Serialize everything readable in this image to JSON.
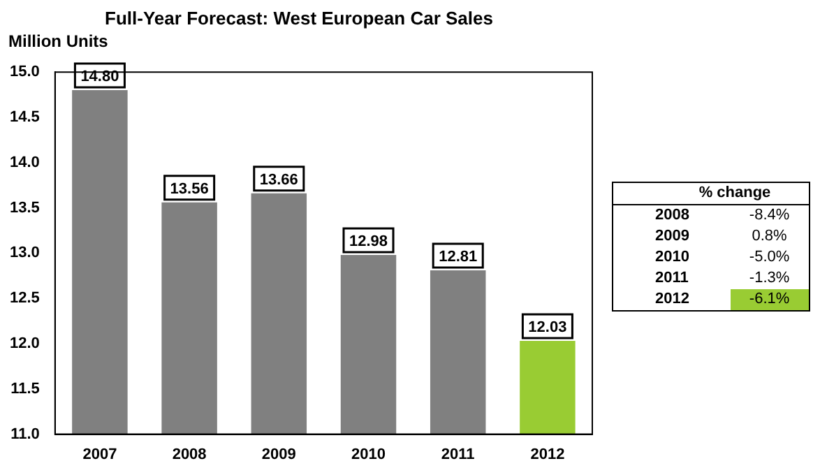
{
  "chart_data": {
    "type": "bar",
    "title": "Full-Year Forecast: West European Car Sales",
    "ylabel": "Million Units",
    "categories": [
      "2007",
      "2008",
      "2009",
      "2010",
      "2011",
      "2012"
    ],
    "values": [
      14.8,
      13.56,
      13.66,
      12.98,
      12.81,
      12.03
    ],
    "colors": [
      "#808080",
      "#808080",
      "#808080",
      "#808080",
      "#808080",
      "#99cc33"
    ],
    "value_labels": [
      "14.80",
      "13.56",
      "13.66",
      "12.98",
      "12.81",
      "12.03"
    ],
    "ylim": [
      11,
      15
    ],
    "yticks": [
      {
        "value": 11,
        "label": "11.0"
      },
      {
        "value": 11.5,
        "label": "11.5"
      },
      {
        "value": 12,
        "label": "12.0"
      },
      {
        "value": 12.5,
        "label": "12.5"
      },
      {
        "value": 13,
        "label": "13.0"
      },
      {
        "value": 13.5,
        "label": "13.5"
      },
      {
        "value": 14,
        "label": "14.0"
      },
      {
        "value": 14.5,
        "label": "14.5"
      },
      {
        "value": 15,
        "label": "15.0"
      }
    ],
    "grid": false,
    "legend": false,
    "annotations": [
      "% change",
      "2008 -8.4%",
      "2009 0.8%",
      "2010 -5.0%",
      "2011 -1.3%",
      "2012 -6.1%"
    ]
  }
}
